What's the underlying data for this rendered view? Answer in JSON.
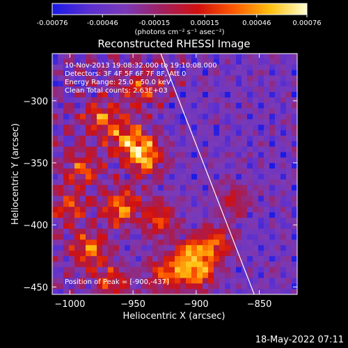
{
  "chart_data": {
    "type": "heatmap",
    "title": "Reconstructed RHESSI Image",
    "xlabel": "Heliocentric X (arcsec)",
    "ylabel": "Heliocentric Y (arcsec)",
    "xlim": [
      -1014,
      -820
    ],
    "ylim": [
      -456,
      -262
    ],
    "x_ticks": [
      -1000,
      -950,
      -900,
      -850
    ],
    "y_ticks": [
      -300,
      -350,
      -400,
      -450
    ],
    "x_tick_labels": [
      "−1000",
      "−950",
      "−900",
      "−850"
    ],
    "y_tick_labels": [
      "−300",
      "−350",
      "−400",
      "−450"
    ],
    "colorbar": {
      "range": [
        -0.00076,
        0.00076
      ],
      "tick_values": [
        -0.00076,
        -0.00046,
        -0.00015,
        0.00015,
        0.00046,
        0.00076
      ],
      "tick_labels": [
        "-0.00076",
        "-0.00046",
        "-0.00015",
        "0.00015",
        "0.00046",
        "0.00076"
      ],
      "units_label": "(photons cm⁻² s⁻¹ asec⁻²)",
      "colors": [
        "#1a1ae6",
        "#5a2fd0",
        "#7a3ab8",
        "#a02060",
        "#d01010",
        "#ff5a00",
        "#ffc010",
        "#ffffd0"
      ]
    },
    "annotations": {
      "time_range": "10-Nov-2013 19:08:32.000 to 19:10:08.000",
      "detectors": "Detectors: 3F 4F 5F 6F 7F 8F, Att 0",
      "energy_range": "Energy Range: 25.0 - 50.0 keV",
      "clean_counts": "Clean    Total counts: 2.63E+03",
      "peak_label": "Position of Peak = [-900,-437]"
    },
    "peak": {
      "x": -900,
      "y": -437
    },
    "limb_line": {
      "x": [
        -928,
        -854
      ],
      "y": -262,
      "y_end": -456
    },
    "bright_regions": [
      {
        "x": -940,
        "y": -345,
        "level": 0.95
      },
      {
        "x": -955,
        "y": -330,
        "level": 0.7
      },
      {
        "x": -975,
        "y": -315,
        "level": 0.65
      },
      {
        "x": -990,
        "y": -355,
        "level": 0.6
      },
      {
        "x": -960,
        "y": -385,
        "level": 0.75
      },
      {
        "x": -930,
        "y": -395,
        "level": 0.7
      },
      {
        "x": -905,
        "y": -425,
        "level": 0.8
      },
      {
        "x": -900,
        "y": -437,
        "level": 1.0
      },
      {
        "x": -885,
        "y": -415,
        "level": 0.75
      },
      {
        "x": -925,
        "y": -440,
        "level": 0.7
      },
      {
        "x": -985,
        "y": -420,
        "level": 0.65
      },
      {
        "x": -965,
        "y": -445,
        "level": 0.55
      },
      {
        "x": -1000,
        "y": -385,
        "level": 0.5
      },
      {
        "x": -945,
        "y": -290,
        "level": 0.5
      },
      {
        "x": -870,
        "y": -380,
        "level": 0.45
      }
    ]
  },
  "footer": {
    "date_stamp": "18-May-2022 07:11"
  }
}
